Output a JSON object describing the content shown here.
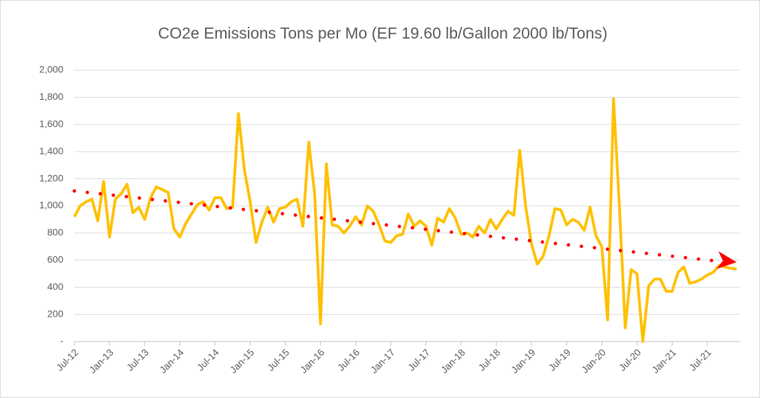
{
  "chart_data": {
    "type": "line",
    "title": "CO2e Emissions Tons per Mo (EF 19.60 lb/Gallon 2000 lb/Tons)",
    "categories": [
      "Jul-12",
      null,
      null,
      null,
      null,
      null,
      "Jan-13",
      null,
      null,
      null,
      null,
      null,
      "Jul-13",
      null,
      null,
      null,
      null,
      null,
      "Jan-14",
      null,
      null,
      null,
      null,
      null,
      "Jul-14",
      null,
      null,
      null,
      null,
      null,
      "Jan-15",
      null,
      null,
      null,
      null,
      null,
      "Jul-15",
      null,
      null,
      null,
      null,
      null,
      "Jan-16",
      null,
      null,
      null,
      null,
      null,
      "Jul-16",
      null,
      null,
      null,
      null,
      null,
      "Jan-17",
      null,
      null,
      null,
      null,
      null,
      "Jul-17",
      null,
      null,
      null,
      null,
      null,
      "Jan-18",
      null,
      null,
      null,
      null,
      null,
      "Jul-18",
      null,
      null,
      null,
      null,
      null,
      "Jan-19",
      null,
      null,
      null,
      null,
      null,
      "Jul-19",
      null,
      null,
      null,
      null,
      null,
      "Jan-20",
      null,
      null,
      null,
      null,
      null,
      "Jul-20",
      null,
      null,
      null,
      null,
      null,
      "Jan-21",
      null,
      null,
      null,
      null,
      null,
      "Jul-21",
      null,
      null,
      null,
      null,
      null
    ],
    "series": [
      {
        "color": "#ffc000",
        "values": [
          920,
          1000,
          1030,
          1050,
          890,
          1180,
          770,
          1050,
          1090,
          1160,
          950,
          990,
          900,
          1060,
          1140,
          1120,
          1100,
          830,
          770,
          870,
          940,
          1010,
          1030,
          970,
          1060,
          1060,
          980,
          990,
          1680,
          1270,
          1030,
          730,
          880,
          990,
          880,
          980,
          990,
          1030,
          1050,
          850,
          1470,
          1090,
          130,
          1310,
          860,
          850,
          800,
          850,
          920,
          860,
          1000,
          960,
          860,
          740,
          730,
          780,
          790,
          940,
          850,
          890,
          850,
          710,
          910,
          880,
          980,
          910,
          790,
          800,
          770,
          850,
          800,
          900,
          830,
          900,
          960,
          930,
          1410,
          1000,
          720,
          570,
          630,
          780,
          980,
          970,
          860,
          900,
          880,
          820,
          990,
          780,
          700,
          160,
          1790,
          1000,
          100,
          530,
          500,
          0,
          410,
          460,
          460,
          370,
          370,
          510,
          550,
          430,
          440,
          460,
          490,
          510,
          560,
          550,
          540,
          535
        ]
      }
    ],
    "trendline": {
      "start": 1110,
      "end": 585,
      "color": "#ff0000"
    },
    "ylim": [
      0,
      2000
    ],
    "yticks": [
      {
        "value": 0,
        "label": "-"
      },
      200,
      400,
      600,
      800,
      {
        "value": 1000,
        "label": "1,000"
      },
      {
        "value": 1200,
        "label": "1,200"
      },
      {
        "value": 1400,
        "label": "1,400"
      },
      {
        "value": 1600,
        "label": "1,600"
      },
      {
        "value": 1800,
        "label": "1,800"
      },
      {
        "value": 2000,
        "label": "2,000"
      }
    ],
    "grid": true
  }
}
